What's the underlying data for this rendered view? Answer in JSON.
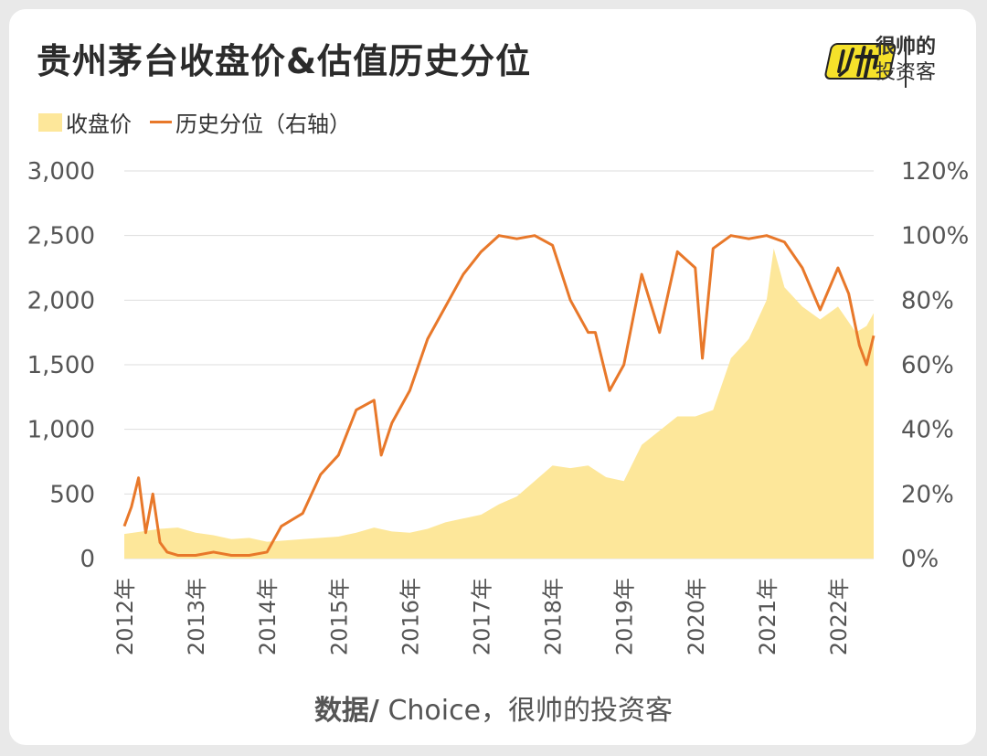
{
  "title": "贵州茅台收盘价&估值历史分位",
  "logo": {
    "mark": "帅",
    "line1": "很帅的",
    "line2": "投资客"
  },
  "legend": {
    "area": "收盘价",
    "line": "历史分位（右轴）"
  },
  "source": {
    "bold": "数据/",
    "rest": " Choice，很帅的投资客"
  },
  "colors": {
    "area": "#fde79a",
    "line": "#e8782a",
    "grid": "#dddddd",
    "text": "#555555"
  },
  "chart_data": {
    "type": "area",
    "x_range": [
      2012.0,
      2022.5
    ],
    "x_ticks": [
      "2012年",
      "2013年",
      "2014年",
      "2015年",
      "2016年",
      "2017年",
      "2018年",
      "2019年",
      "2020年",
      "2021年",
      "2022年"
    ],
    "y_left": {
      "ticks": [
        "0",
        "500",
        "1,000",
        "1,500",
        "2,000",
        "2,500",
        "3,000"
      ],
      "ylim": [
        0,
        3000
      ]
    },
    "y_right": {
      "ticks": [
        "0%",
        "20%",
        "40%",
        "60%",
        "80%",
        "100%",
        "120%"
      ],
      "ylim": [
        0,
        120
      ]
    },
    "grid": true,
    "series": [
      {
        "name": "收盘价",
        "kind": "area",
        "axis": "left",
        "points": [
          [
            2012.0,
            190
          ],
          [
            2012.25,
            210
          ],
          [
            2012.5,
            230
          ],
          [
            2012.75,
            240
          ],
          [
            2013.0,
            200
          ],
          [
            2013.25,
            180
          ],
          [
            2013.5,
            150
          ],
          [
            2013.75,
            160
          ],
          [
            2014.0,
            130
          ],
          [
            2014.25,
            140
          ],
          [
            2014.5,
            150
          ],
          [
            2014.75,
            160
          ],
          [
            2015.0,
            170
          ],
          [
            2015.25,
            200
          ],
          [
            2015.5,
            240
          ],
          [
            2015.75,
            210
          ],
          [
            2016.0,
            200
          ],
          [
            2016.25,
            230
          ],
          [
            2016.5,
            280
          ],
          [
            2016.75,
            310
          ],
          [
            2017.0,
            340
          ],
          [
            2017.25,
            420
          ],
          [
            2017.5,
            480
          ],
          [
            2017.75,
            600
          ],
          [
            2018.0,
            720
          ],
          [
            2018.25,
            700
          ],
          [
            2018.5,
            720
          ],
          [
            2018.75,
            630
          ],
          [
            2019.0,
            600
          ],
          [
            2019.25,
            880
          ],
          [
            2019.5,
            990
          ],
          [
            2019.75,
            1100
          ],
          [
            2020.0,
            1100
          ],
          [
            2020.25,
            1150
          ],
          [
            2020.5,
            1550
          ],
          [
            2020.75,
            1700
          ],
          [
            2021.0,
            2000
          ],
          [
            2021.1,
            2400
          ],
          [
            2021.25,
            2100
          ],
          [
            2021.5,
            1950
          ],
          [
            2021.75,
            1850
          ],
          [
            2022.0,
            1950
          ],
          [
            2022.25,
            1750
          ],
          [
            2022.4,
            1800
          ],
          [
            2022.5,
            1900
          ]
        ]
      },
      {
        "name": "历史分位（右轴）",
        "kind": "line",
        "axis": "right",
        "points": [
          [
            2012.0,
            10
          ],
          [
            2012.1,
            16
          ],
          [
            2012.2,
            25
          ],
          [
            2012.3,
            8
          ],
          [
            2012.4,
            20
          ],
          [
            2012.5,
            5
          ],
          [
            2012.6,
            2
          ],
          [
            2012.75,
            1
          ],
          [
            2013.0,
            1
          ],
          [
            2013.25,
            2
          ],
          [
            2013.5,
            1
          ],
          [
            2013.75,
            1
          ],
          [
            2014.0,
            2
          ],
          [
            2014.2,
            10
          ],
          [
            2014.35,
            12
          ],
          [
            2014.5,
            14
          ],
          [
            2014.75,
            26
          ],
          [
            2015.0,
            32
          ],
          [
            2015.25,
            46
          ],
          [
            2015.5,
            49
          ],
          [
            2015.6,
            32
          ],
          [
            2015.75,
            42
          ],
          [
            2016.0,
            52
          ],
          [
            2016.25,
            68
          ],
          [
            2016.5,
            78
          ],
          [
            2016.75,
            88
          ],
          [
            2017.0,
            95
          ],
          [
            2017.25,
            100
          ],
          [
            2017.5,
            99
          ],
          [
            2017.75,
            100
          ],
          [
            2018.0,
            97
          ],
          [
            2018.25,
            80
          ],
          [
            2018.5,
            70
          ],
          [
            2018.6,
            70
          ],
          [
            2018.8,
            52
          ],
          [
            2019.0,
            60
          ],
          [
            2019.25,
            88
          ],
          [
            2019.5,
            70
          ],
          [
            2019.75,
            95
          ],
          [
            2020.0,
            90
          ],
          [
            2020.1,
            62
          ],
          [
            2020.25,
            96
          ],
          [
            2020.5,
            100
          ],
          [
            2020.75,
            99
          ],
          [
            2021.0,
            100
          ],
          [
            2021.25,
            98
          ],
          [
            2021.5,
            90
          ],
          [
            2021.75,
            77
          ],
          [
            2022.0,
            90
          ],
          [
            2022.15,
            82
          ],
          [
            2022.3,
            66
          ],
          [
            2022.4,
            60
          ],
          [
            2022.5,
            69
          ]
        ]
      }
    ]
  }
}
